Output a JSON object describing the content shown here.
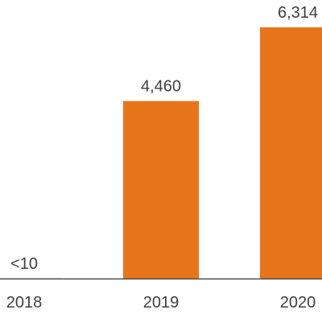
{
  "chart_data": {
    "type": "bar",
    "categories": [
      "2018",
      "2019",
      "2020"
    ],
    "values": [
      5,
      4460,
      6314
    ],
    "data_labels": [
      "<10",
      "4,460",
      "6,314"
    ],
    "title": "",
    "xlabel": "",
    "ylabel": "",
    "ylim": [
      0,
      7000
    ],
    "grid": false,
    "bar_color": "#E8751A",
    "axis_color": "#4D4D4D",
    "text_color": "#404040"
  }
}
